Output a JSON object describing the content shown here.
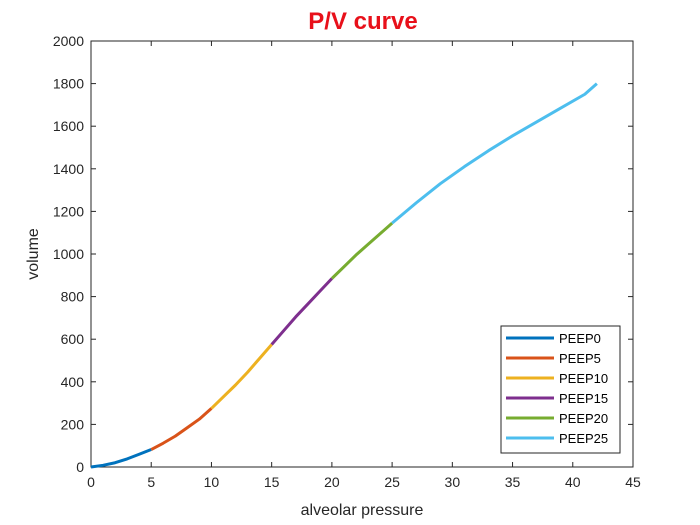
{
  "chart_data": {
    "type": "line",
    "title": "P/V curve",
    "title_color": "#e8101a",
    "xlabel": "alveolar pressure",
    "ylabel": "volume",
    "xlim": [
      0,
      45
    ],
    "ylim": [
      0,
      2000
    ],
    "xticks": [
      0,
      5,
      10,
      15,
      20,
      25,
      30,
      35,
      40,
      45
    ],
    "yticks": [
      0,
      200,
      400,
      600,
      800,
      1000,
      1200,
      1400,
      1600,
      1800,
      2000
    ],
    "grid": false,
    "legend_position": "bottom-right",
    "series": [
      {
        "name": "PEEP0",
        "color": "#0072bd",
        "x": [
          0,
          1,
          2,
          3,
          4,
          5
        ],
        "y": [
          0,
          8,
          20,
          38,
          60,
          82
        ]
      },
      {
        "name": "PEEP5",
        "color": "#d95319",
        "x": [
          5,
          6,
          7,
          8,
          9,
          10
        ],
        "y": [
          82,
          112,
          145,
          185,
          225,
          275
        ]
      },
      {
        "name": "PEEP10",
        "color": "#edb120",
        "x": [
          10,
          11,
          12,
          13,
          14,
          15
        ],
        "y": [
          275,
          330,
          385,
          445,
          510,
          575
        ]
      },
      {
        "name": "PEEP15",
        "color": "#7e2f8e",
        "x": [
          15,
          16,
          17,
          18,
          19,
          20
        ],
        "y": [
          575,
          640,
          705,
          765,
          825,
          885
        ]
      },
      {
        "name": "PEEP20",
        "color": "#77ac30",
        "x": [
          20,
          21,
          22,
          23,
          24,
          25
        ],
        "y": [
          885,
          940,
          995,
          1045,
          1095,
          1145
        ]
      },
      {
        "name": "PEEP25",
        "color": "#4dbeee",
        "x": [
          25,
          27,
          29,
          31,
          33,
          35,
          37,
          39,
          41,
          42
        ],
        "y": [
          1145,
          1240,
          1330,
          1410,
          1485,
          1555,
          1620,
          1685,
          1750,
          1800
        ]
      }
    ]
  }
}
